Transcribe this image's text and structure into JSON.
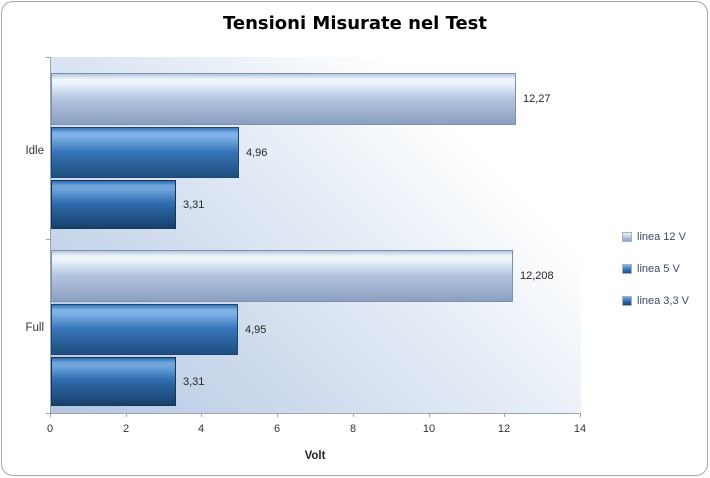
{
  "chart_data": {
    "type": "bar",
    "orientation": "horizontal",
    "title": "Tensioni Misurate nel Test",
    "categories": [
      "Idle",
      "Full"
    ],
    "series": [
      {
        "name": "linea 12 V",
        "values": [
          12.27,
          12.208
        ],
        "value_labels": [
          "12,27",
          "12,208"
        ],
        "colors": {
          "light": "#eff5fc",
          "mid": "#b4c6e0",
          "dark": "#8ba0c0",
          "border": "#8090aa"
        }
      },
      {
        "name": "linea 5 V",
        "values": [
          4.96,
          4.95
        ],
        "value_labels": [
          "4,96",
          "4,95"
        ],
        "colors": {
          "light": "#7fb2e6",
          "mid": "#3876ba",
          "dark": "#1f4e7e",
          "border": "#1c4674"
        }
      },
      {
        "name": "linea 3,3 V",
        "values": [
          3.31,
          3.31
        ],
        "value_labels": [
          "3,31",
          "3,31"
        ],
        "colors": {
          "light": "#6ea6dc",
          "mid": "#2f6aac",
          "dark": "#18416b",
          "border": "#133758"
        }
      }
    ],
    "xlabel": "Volt",
    "xlim": [
      0,
      14
    ],
    "xticks": [
      0,
      2,
      4,
      6,
      8,
      10,
      12,
      14
    ],
    "xtick_labels": [
      "0",
      "2",
      "4",
      "6",
      "8",
      "10",
      "12",
      "14"
    ],
    "legend_position": "right",
    "grid": false,
    "plot_background_from": "#b3c6e2",
    "plot_background_to": "#ffffff",
    "axis_color": "#9aa5b1",
    "label_color": "#262626",
    "legend_text_color": "#3d4a63"
  }
}
